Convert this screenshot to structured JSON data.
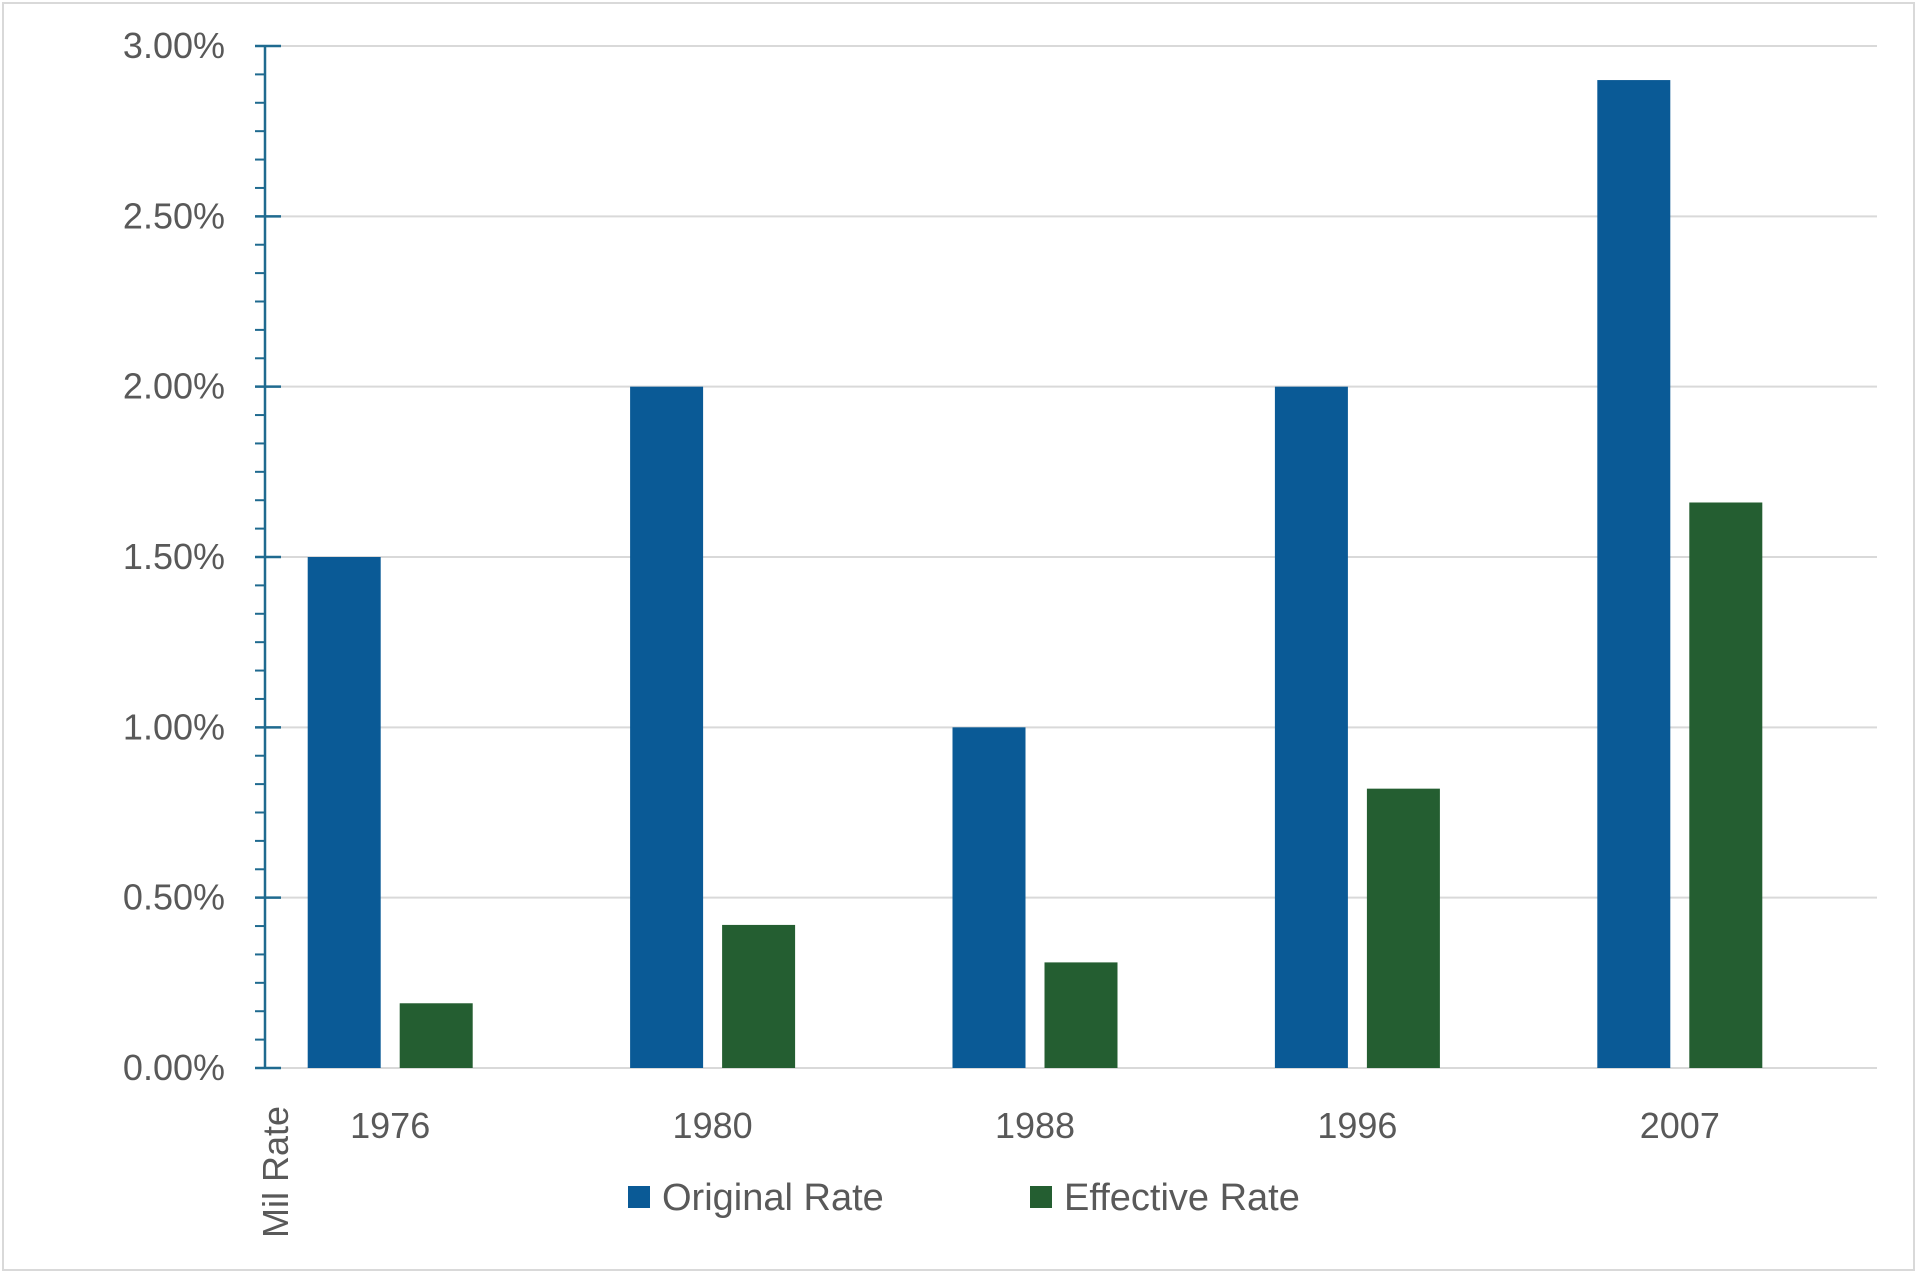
{
  "chart_data": {
    "type": "bar",
    "title": "",
    "xlabel": "",
    "ylabel": "Mil Rate",
    "categories": [
      "1976",
      "1980",
      "1988",
      "1996",
      "2007"
    ],
    "series": [
      {
        "name": "Original Rate",
        "color": "#0a5a96",
        "values": [
          1.5,
          2.0,
          1.0,
          2.0,
          2.9
        ]
      },
      {
        "name": "Effective Rate",
        "color": "#245e31",
        "values": [
          0.19,
          0.42,
          0.31,
          0.82,
          1.66
        ]
      }
    ],
    "ylim": [
      0,
      3.0
    ],
    "yticks": [
      0.0,
      0.5,
      1.0,
      1.5,
      2.0,
      2.5,
      3.0
    ],
    "ytick_labels": [
      "0.00%",
      "0.50%",
      "1.00%",
      "1.50%",
      "2.00%",
      "2.50%",
      "3.00%"
    ],
    "grid": true,
    "legend_position": "bottom",
    "axis_color": "#1f6a8f",
    "grid_color": "#d9d9d9"
  }
}
